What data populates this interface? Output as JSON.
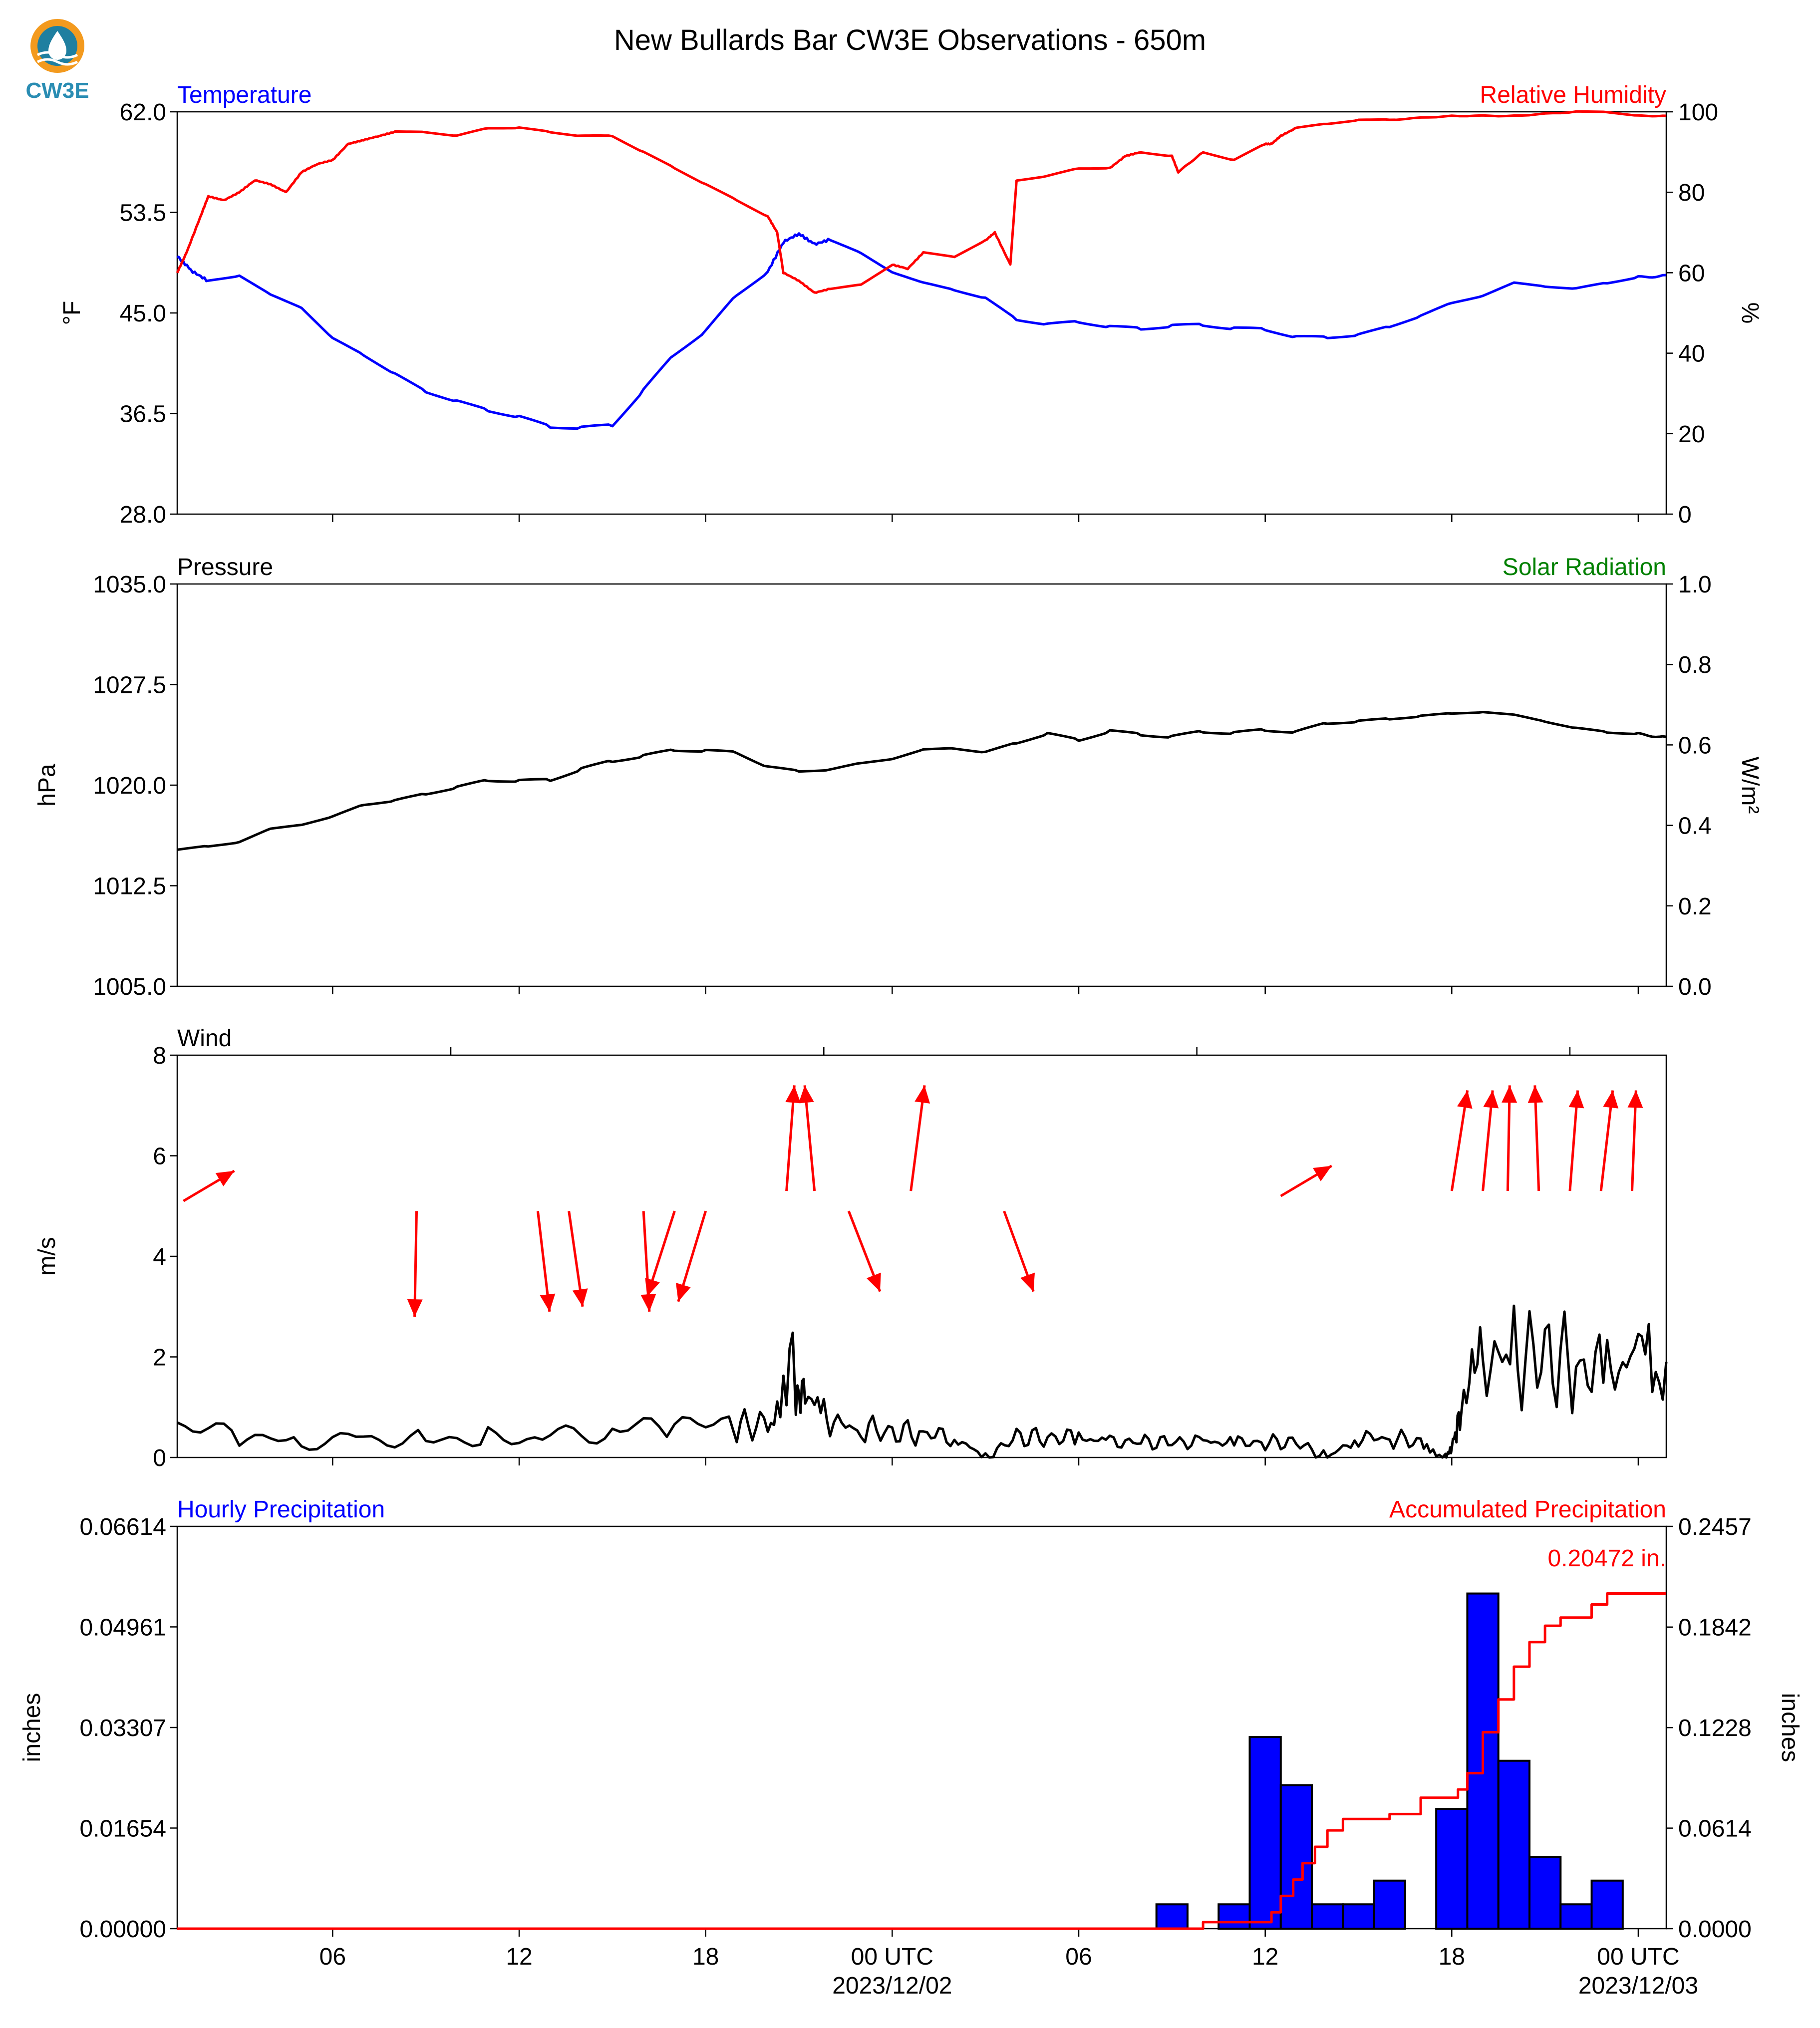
{
  "figure": {
    "title": "New Bullards Bar CW3E Observations - 650m",
    "logo_text": "CW3E"
  },
  "time_axis": {
    "tick_labels": [
      "06",
      "12",
      "18",
      "00 UTC",
      "06",
      "12",
      "18",
      "00 UTC"
    ],
    "tick_hours": [
      6,
      12,
      18,
      24,
      30,
      36,
      42,
      48
    ],
    "date_labels": [
      {
        "hour": 24,
        "text": "2023/12/02"
      },
      {
        "hour": 48,
        "text": "2023/12/03"
      }
    ],
    "range_hours": [
      1,
      48.9
    ]
  },
  "chart_data": [
    {
      "id": "temp_rh",
      "type": "line",
      "left_label": "Temperature",
      "right_label": "Relative Humidity",
      "ylabel": "°F",
      "y2label": "%",
      "ylim": [
        28.0,
        62.0
      ],
      "y2lim": [
        0,
        100
      ],
      "yticks": [
        "28.0",
        "36.5",
        "45.0",
        "53.5",
        "62.0"
      ],
      "y2ticks": [
        "0",
        "20",
        "40",
        "60",
        "80",
        "100"
      ],
      "colors": {
        "temperature": "#0000ff",
        "humidity": "#ff0000"
      },
      "series": [
        {
          "name": "Temperature",
          "axis": "left",
          "color": "#0000ff",
          "x": [
            1,
            1.5,
            2,
            3,
            4,
            5,
            6,
            7,
            8,
            9,
            10,
            11,
            12,
            13,
            14,
            15,
            16,
            17,
            18,
            19,
            20,
            20.5,
            21,
            21.5,
            22,
            23,
            24,
            25,
            26,
            27,
            28,
            29,
            30,
            31,
            32,
            33,
            34,
            35,
            36,
            37,
            38,
            39,
            40,
            41,
            42,
            43,
            44,
            45,
            46,
            47,
            48,
            48.9
          ],
          "y": [
            49.8,
            48.5,
            47.7,
            48.2,
            46.5,
            45.5,
            42.8,
            41.5,
            39.8,
            38.4,
            37.5,
            36.8,
            36.2,
            35.4,
            35.3,
            35.5,
            38.5,
            41.5,
            43.5,
            46.5,
            48.5,
            51.0,
            51.7,
            50.8,
            51.2,
            50.0,
            48.5,
            47.5,
            47.0,
            46.2,
            44.5,
            44.0,
            44.3,
            43.8,
            43.7,
            43.9,
            44.0,
            43.7,
            43.6,
            43.0,
            42.9,
            43.2,
            43.8,
            44.8,
            45.8,
            46.5,
            47.5,
            47.3,
            47.0,
            47.6,
            48.0,
            48.2
          ]
        },
        {
          "name": "Relative Humidity",
          "axis": "right",
          "color": "#ff0000",
          "x": [
            1,
            1.3,
            1.8,
            2,
            2.5,
            3,
            3.5,
            4,
            4.5,
            5,
            5.5,
            6,
            6.5,
            7,
            7.5,
            8,
            9,
            10,
            11,
            12,
            13,
            14,
            15,
            16,
            17,
            18,
            19,
            20,
            20.3,
            20.5,
            21,
            21.5,
            22,
            23,
            24,
            24.5,
            25,
            26,
            27,
            27.3,
            27.8,
            28,
            29,
            30,
            31,
            31.5,
            32,
            33,
            33.2,
            34,
            35,
            36,
            36.2,
            36.5,
            37,
            38,
            39,
            40,
            42,
            44,
            46,
            47,
            48,
            48.9
          ],
          "y": [
            60,
            65,
            75,
            79,
            78,
            80,
            83,
            82,
            80,
            85,
            87,
            88,
            92,
            93,
            94,
            95,
            95,
            94,
            96,
            96,
            95,
            94,
            94,
            90,
            86,
            82,
            78,
            74,
            70,
            60,
            58,
            55,
            56,
            57,
            62,
            61,
            65,
            64,
            68,
            70,
            62,
            83,
            84,
            86,
            86,
            89,
            90,
            89,
            85,
            90,
            88,
            92,
            92,
            94,
            96,
            97,
            98,
            98,
            99,
            99,
            100,
            100,
            99,
            99
          ]
        }
      ]
    },
    {
      "id": "pressure",
      "type": "line",
      "left_label": "Pressure",
      "right_label": "Solar Radiation",
      "ylabel": "hPa",
      "y2label": "W/m²",
      "ylim": [
        1005.0,
        1035.0
      ],
      "y2lim": [
        0.0,
        1.0
      ],
      "yticks": [
        "1005.0",
        "1012.5",
        "1020.0",
        "1027.5",
        "1035.0"
      ],
      "y2ticks": [
        "0.0",
        "0.2",
        "0.4",
        "0.6",
        "0.8",
        "1.0"
      ],
      "series": [
        {
          "name": "Pressure",
          "color": "#000000",
          "x": [
            1,
            2,
            3,
            4,
            5,
            6,
            7,
            8,
            9,
            10,
            11,
            12,
            13,
            14,
            15,
            16,
            17,
            18,
            19,
            20,
            21,
            22,
            23,
            24,
            25,
            26,
            27,
            28,
            29,
            30,
            31,
            32,
            33,
            34,
            35,
            36,
            37,
            38,
            39,
            40,
            41,
            42,
            43,
            44,
            45,
            46,
            47,
            48,
            48.9
          ],
          "y": [
            1015.2,
            1015.4,
            1015.8,
            1016.7,
            1017.1,
            1017.6,
            1018.6,
            1018.8,
            1019.4,
            1019.8,
            1020.4,
            1020.3,
            1020.4,
            1021.2,
            1021.8,
            1022.2,
            1022.6,
            1022.6,
            1022.4,
            1021.4,
            1021.0,
            1021.2,
            1021.6,
            1022.0,
            1022.6,
            1022.8,
            1022.4,
            1023.2,
            1023.8,
            1023.4,
            1024.0,
            1023.8,
            1023.6,
            1024.0,
            1023.9,
            1024.1,
            1024.0,
            1024.6,
            1024.8,
            1024.9,
            1025.2,
            1025.3,
            1025.5,
            1025.2,
            1024.8,
            1024.2,
            1024.0,
            1023.8,
            1023.6
          ]
        }
      ]
    },
    {
      "id": "wind",
      "type": "line",
      "left_label": "Wind",
      "ylabel": "m/s",
      "ylim": [
        0,
        8
      ],
      "yticks": [
        "0",
        "2",
        "4",
        "6",
        "8"
      ],
      "series": [
        {
          "name": "Wind speed",
          "color": "#000000",
          "x": [
            1,
            3,
            5,
            7,
            9,
            11,
            13,
            15,
            17,
            19,
            20,
            20.8,
            21.2,
            22,
            23,
            24,
            25,
            26,
            27,
            28,
            29,
            30,
            31,
            32,
            33,
            34,
            35,
            36,
            37,
            38,
            39,
            40,
            41,
            41.8,
            42,
            42.3,
            43,
            44,
            45,
            46,
            47,
            48,
            48.9
          ],
          "y": [
            0.6,
            0.4,
            0.3,
            0.4,
            0.4,
            0.4,
            0.4,
            0.5,
            0.6,
            0.6,
            0.7,
            1.9,
            1.0,
            0.7,
            0.6,
            0.5,
            0.5,
            0.4,
            0.0,
            0.4,
            0.4,
            0.4,
            0.3,
            0.3,
            0.3,
            0.3,
            0.3,
            0.3,
            0.3,
            0.0,
            0.4,
            0.4,
            0.3,
            0.0,
            0.2,
            0.9,
            1.9,
            2.0,
            2.0,
            1.8,
            1.7,
            1.9,
            1.9
          ]
        },
        {
          "name": "Wind direction",
          "color": "#ff0000",
          "arrows": [
            {
              "x": 1.2,
              "y": 5.1,
              "dx": 2.6,
              "dy": 0.6
            },
            {
              "x": 8.7,
              "y": 4.9,
              "dx": -0.1,
              "dy": -2.1
            },
            {
              "x": 12.6,
              "y": 4.9,
              "dx": 0.6,
              "dy": -2.0
            },
            {
              "x": 13.6,
              "y": 4.9,
              "dx": 0.7,
              "dy": -1.9
            },
            {
              "x": 16.0,
              "y": 4.9,
              "dx": 0.3,
              "dy": -2.0
            },
            {
              "x": 17.0,
              "y": 4.9,
              "dx": -1.4,
              "dy": -1.7
            },
            {
              "x": 18.0,
              "y": 4.9,
              "dx": -1.4,
              "dy": -1.8
            },
            {
              "x": 20.6,
              "y": 5.3,
              "dx": 0.4,
              "dy": 2.1
            },
            {
              "x": 21.5,
              "y": 5.3,
              "dx": -0.5,
              "dy": 2.1
            },
            {
              "x": 22.6,
              "y": 4.9,
              "dx": 1.6,
              "dy": -1.6
            },
            {
              "x": 24.6,
              "y": 5.3,
              "dx": 0.7,
              "dy": 2.1
            },
            {
              "x": 27.6,
              "y": 4.9,
              "dx": 1.5,
              "dy": -1.6
            },
            {
              "x": 36.5,
              "y": 5.2,
              "dx": 2.6,
              "dy": 0.6
            },
            {
              "x": 42.0,
              "y": 5.3,
              "dx": 0.8,
              "dy": 2.0
            },
            {
              "x": 43.0,
              "y": 5.3,
              "dx": 0.5,
              "dy": 2.0
            },
            {
              "x": 43.8,
              "y": 5.3,
              "dx": 0.1,
              "dy": 2.1
            },
            {
              "x": 44.8,
              "y": 5.3,
              "dx": -0.2,
              "dy": 2.1
            },
            {
              "x": 45.8,
              "y": 5.3,
              "dx": 0.4,
              "dy": 2.0
            },
            {
              "x": 46.8,
              "y": 5.3,
              "dx": 0.6,
              "dy": 2.0
            },
            {
              "x": 47.8,
              "y": 5.3,
              "dx": 0.2,
              "dy": 2.0
            }
          ]
        }
      ]
    },
    {
      "id": "precip",
      "type": "bar",
      "left_label": "Hourly Precipitation",
      "right_label": "Accumulated Precipitation",
      "ylabel": "inches",
      "y2label": "inches",
      "ylim": [
        0.0,
        0.06614
      ],
      "y2lim": [
        0.0,
        0.2457
      ],
      "yticks": [
        "0.00000",
        "0.01654",
        "0.03307",
        "0.04961",
        "0.06614"
      ],
      "y2ticks": [
        "0.0000",
        "0.0614",
        "0.1228",
        "0.1842",
        "0.2457"
      ],
      "annotation": "0.20472 in.",
      "bars": {
        "color": "#0000ff",
        "hours": [
          33,
          35,
          36,
          37,
          38,
          39,
          40,
          42,
          43,
          44,
          45,
          46,
          47
        ],
        "values": [
          0.004,
          0.004,
          0.0315,
          0.0236,
          0.004,
          0.004,
          0.0079,
          0.0197,
          0.0551,
          0.0276,
          0.0118,
          0.004,
          0.0079
        ]
      },
      "series": [
        {
          "name": "Accumulated",
          "axis": "right",
          "color": "#ff0000",
          "x": [
            1,
            33.5,
            34,
            34.8,
            35.8,
            36.2,
            36.5,
            36.9,
            37.2,
            37.6,
            38,
            38.5,
            39,
            40,
            41,
            42,
            42.2,
            42.5,
            43,
            43.5,
            44,
            44.5,
            45,
            45.5,
            46,
            46.5,
            47,
            48.9
          ],
          "y": [
            0,
            0,
            0.004,
            0.004,
            0.004,
            0.01,
            0.02,
            0.03,
            0.04,
            0.05,
            0.06,
            0.067,
            0.067,
            0.07,
            0.08,
            0.08,
            0.085,
            0.095,
            0.12,
            0.14,
            0.16,
            0.175,
            0.185,
            0.19,
            0.19,
            0.198,
            0.2047,
            0.2047
          ]
        }
      ]
    }
  ]
}
